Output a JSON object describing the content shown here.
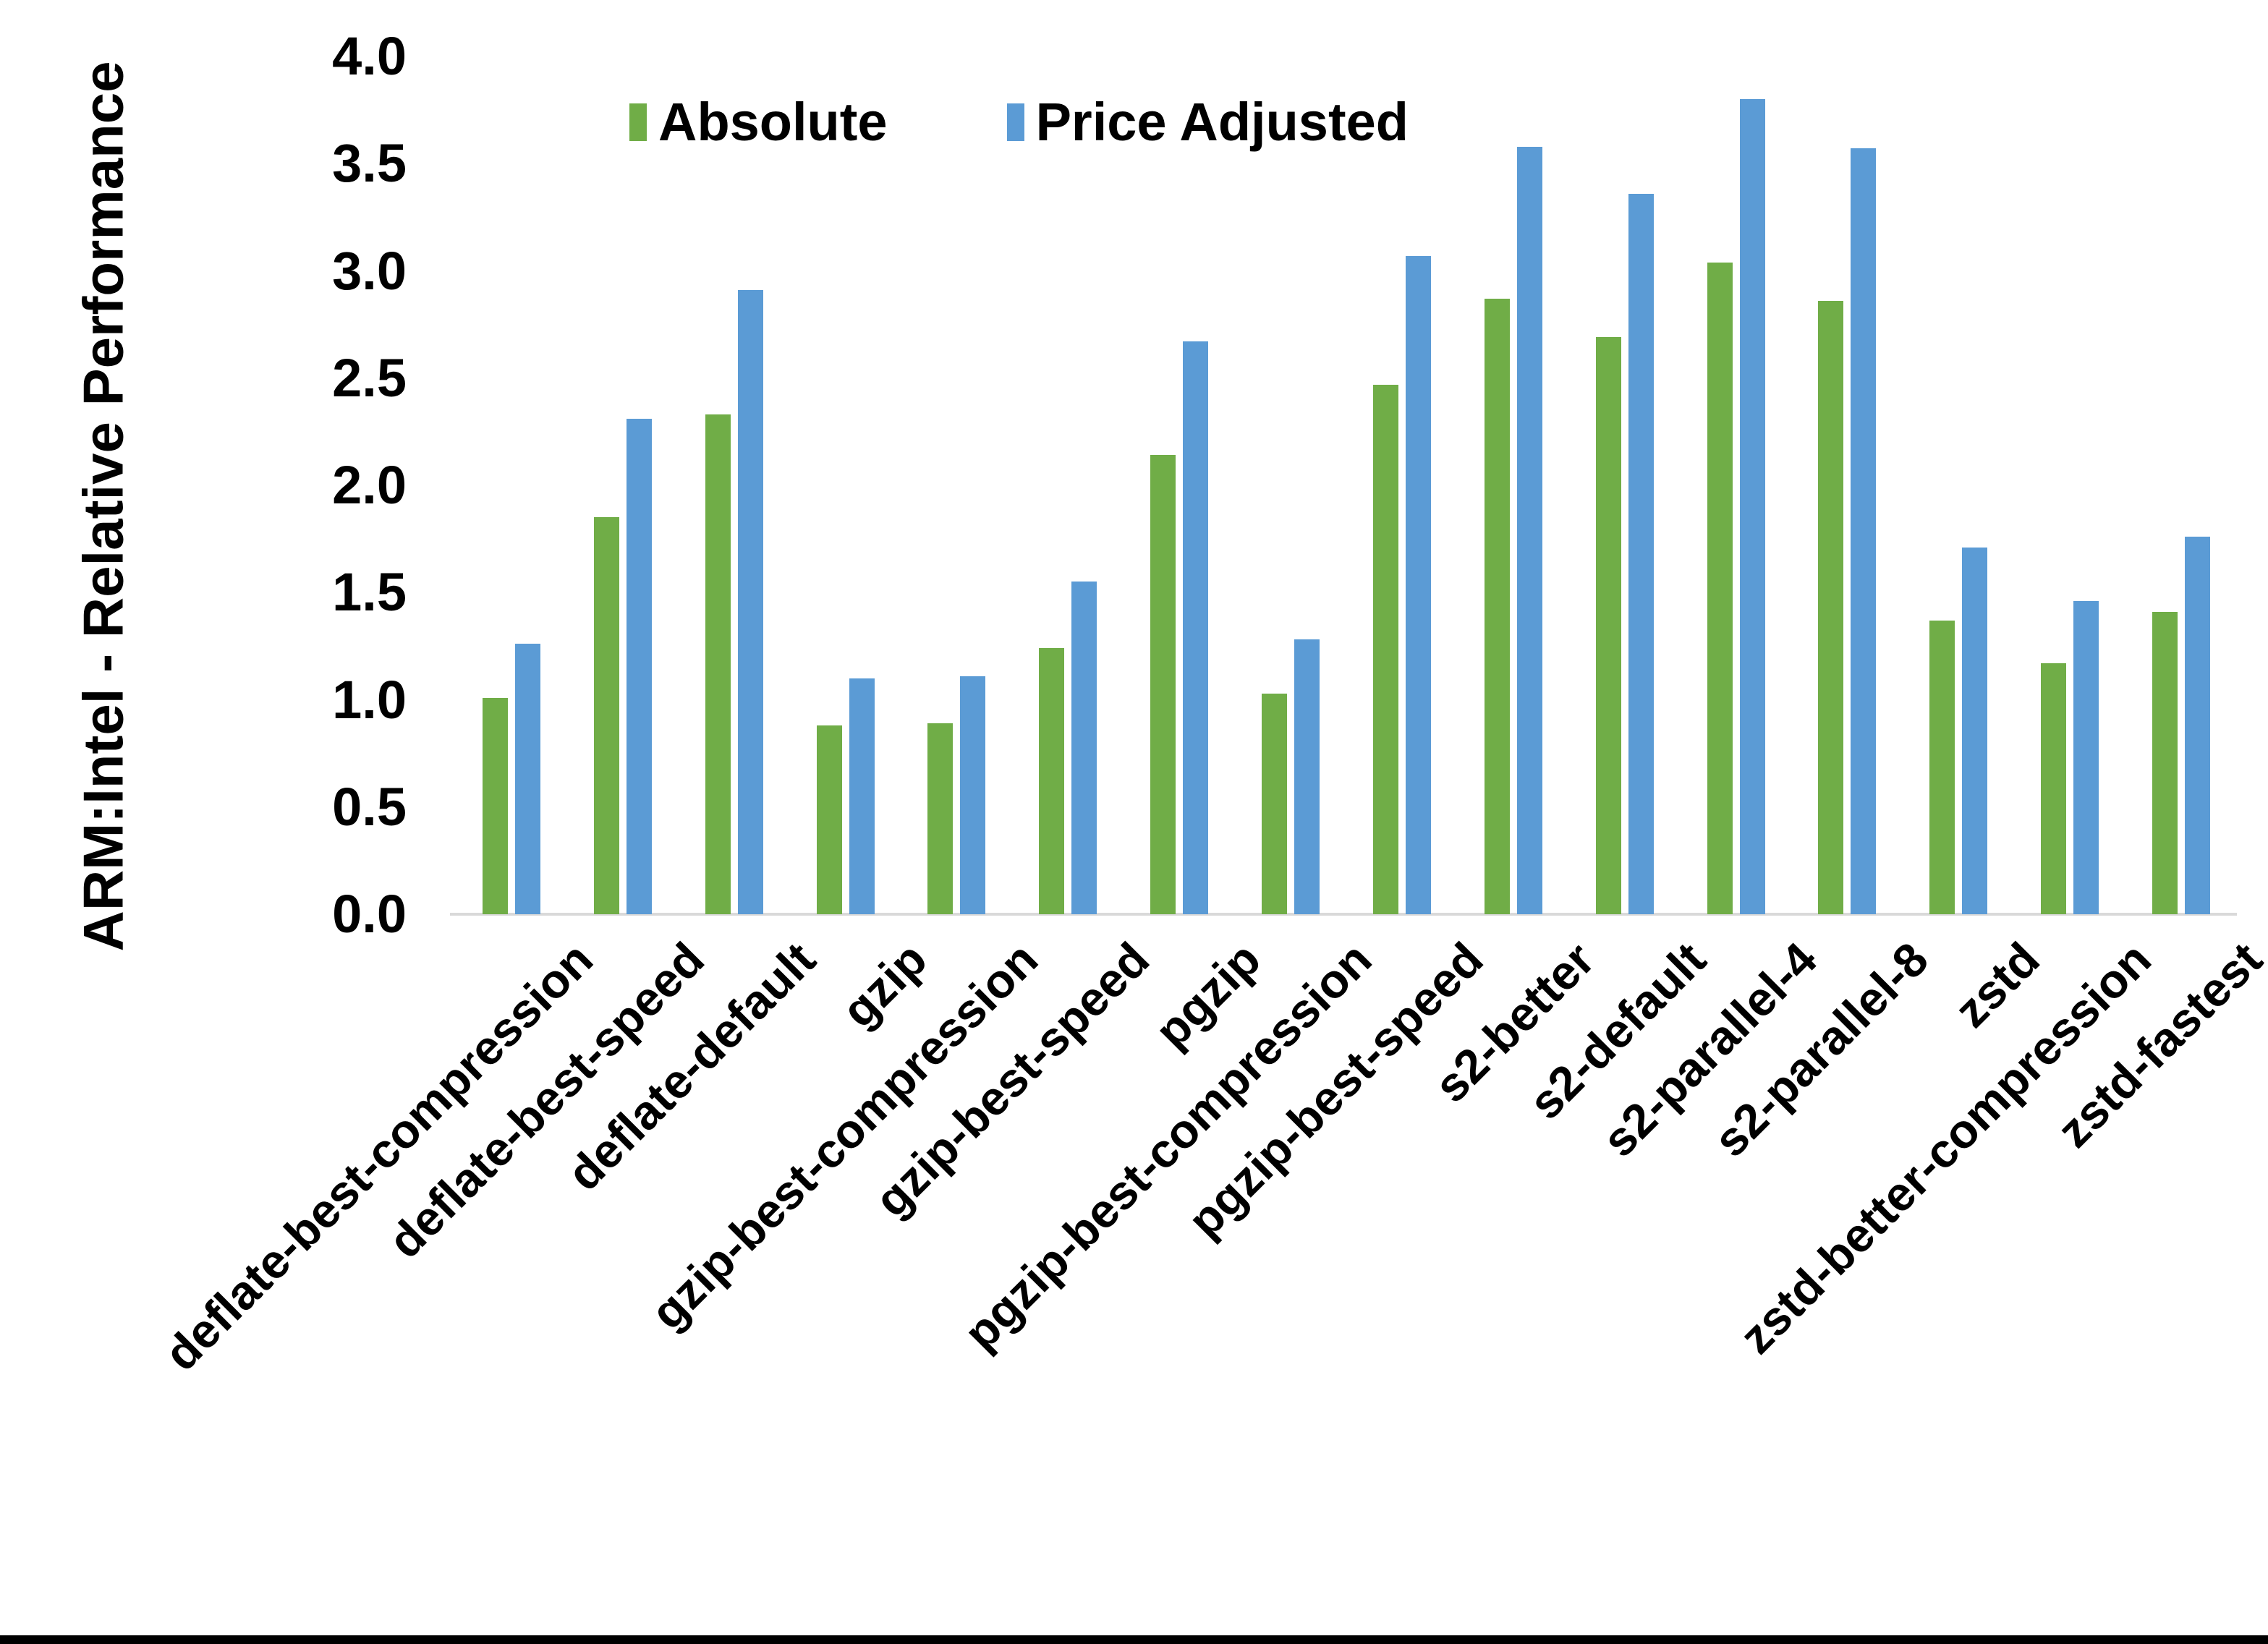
{
  "figure": {
    "y_axis_title": "ARM:Intel - Relative Performance",
    "legend": {
      "absolute_label": "Absolute",
      "price_adjusted_label": "Price Adjusted"
    },
    "colors": {
      "absolute": "#70AD47",
      "price_adjusted": "#5B9BD5",
      "axis_line": "#D9D9D9",
      "text": "#000000"
    }
  },
  "chart_data": {
    "type": "bar",
    "title": "",
    "xlabel": "",
    "ylabel": "ARM:Intel - Relative Performance",
    "ylim": [
      0.0,
      4.0
    ],
    "ytick_step": 0.5,
    "ytick_labels": [
      "0.0",
      "0.5",
      "1.0",
      "1.5",
      "2.0",
      "2.5",
      "3.0",
      "3.5",
      "4.0"
    ],
    "grid": false,
    "legend_position": "top-center",
    "categories": [
      "deflate-best-compression",
      "deflate-best-speed",
      "deflate-default",
      "gzip",
      "gzip-best-compression",
      "gzip-best-speed",
      "pgzip",
      "pgzip-best-compression",
      "pgzip-best-speed",
      "s2-better",
      "s2-default",
      "s2-parallel-4",
      "s2-parallel-8",
      "zstd",
      "zstd-better-compression",
      "zstd-fastest"
    ],
    "series": [
      {
        "name": "Absolute",
        "color": "#70AD47",
        "values": [
          1.01,
          1.85,
          2.33,
          0.88,
          0.89,
          1.24,
          2.14,
          1.03,
          2.47,
          2.87,
          2.69,
          3.04,
          2.86,
          1.37,
          1.17,
          1.41
        ]
      },
      {
        "name": "Price Adjusted",
        "color": "#5B9BD5",
        "values": [
          1.26,
          2.31,
          2.91,
          1.1,
          1.11,
          1.55,
          2.67,
          1.28,
          3.07,
          3.58,
          3.36,
          3.8,
          3.57,
          1.71,
          1.46,
          1.76
        ]
      }
    ]
  }
}
